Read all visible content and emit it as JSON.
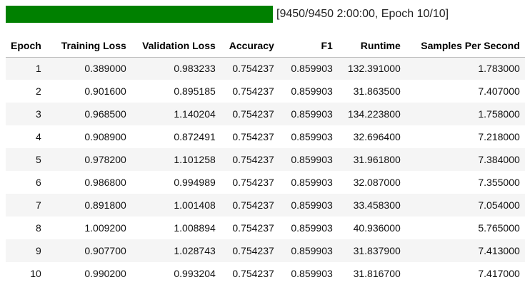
{
  "progress": {
    "fraction": 1.0,
    "fill_color": "#008000",
    "status_text": "[9450/9450 2:00:00, Epoch 10/10]"
  },
  "table": {
    "headers": [
      "Epoch",
      "Training Loss",
      "Validation Loss",
      "Accuracy",
      "F1",
      "Runtime",
      "Samples Per Second"
    ],
    "rows": [
      [
        "1",
        "0.389000",
        "0.983233",
        "0.754237",
        "0.859903",
        "132.391000",
        "1.783000"
      ],
      [
        "2",
        "0.901600",
        "0.895185",
        "0.754237",
        "0.859903",
        "31.863500",
        "7.407000"
      ],
      [
        "3",
        "0.968500",
        "1.140204",
        "0.754237",
        "0.859903",
        "134.223800",
        "1.758000"
      ],
      [
        "4",
        "0.908900",
        "0.872491",
        "0.754237",
        "0.859903",
        "32.696400",
        "7.218000"
      ],
      [
        "5",
        "0.978200",
        "1.101258",
        "0.754237",
        "0.859903",
        "31.961800",
        "7.384000"
      ],
      [
        "6",
        "0.986800",
        "0.994989",
        "0.754237",
        "0.859903",
        "32.087000",
        "7.355000"
      ],
      [
        "7",
        "0.891800",
        "1.001408",
        "0.754237",
        "0.859903",
        "33.458300",
        "7.054000"
      ],
      [
        "8",
        "1.009200",
        "1.008894",
        "0.754237",
        "0.859903",
        "40.936000",
        "5.765000"
      ],
      [
        "9",
        "0.907700",
        "1.028743",
        "0.754237",
        "0.859903",
        "31.837900",
        "7.413000"
      ],
      [
        "10",
        "0.990200",
        "0.993204",
        "0.754237",
        "0.859903",
        "31.816700",
        "7.417000"
      ]
    ]
  }
}
